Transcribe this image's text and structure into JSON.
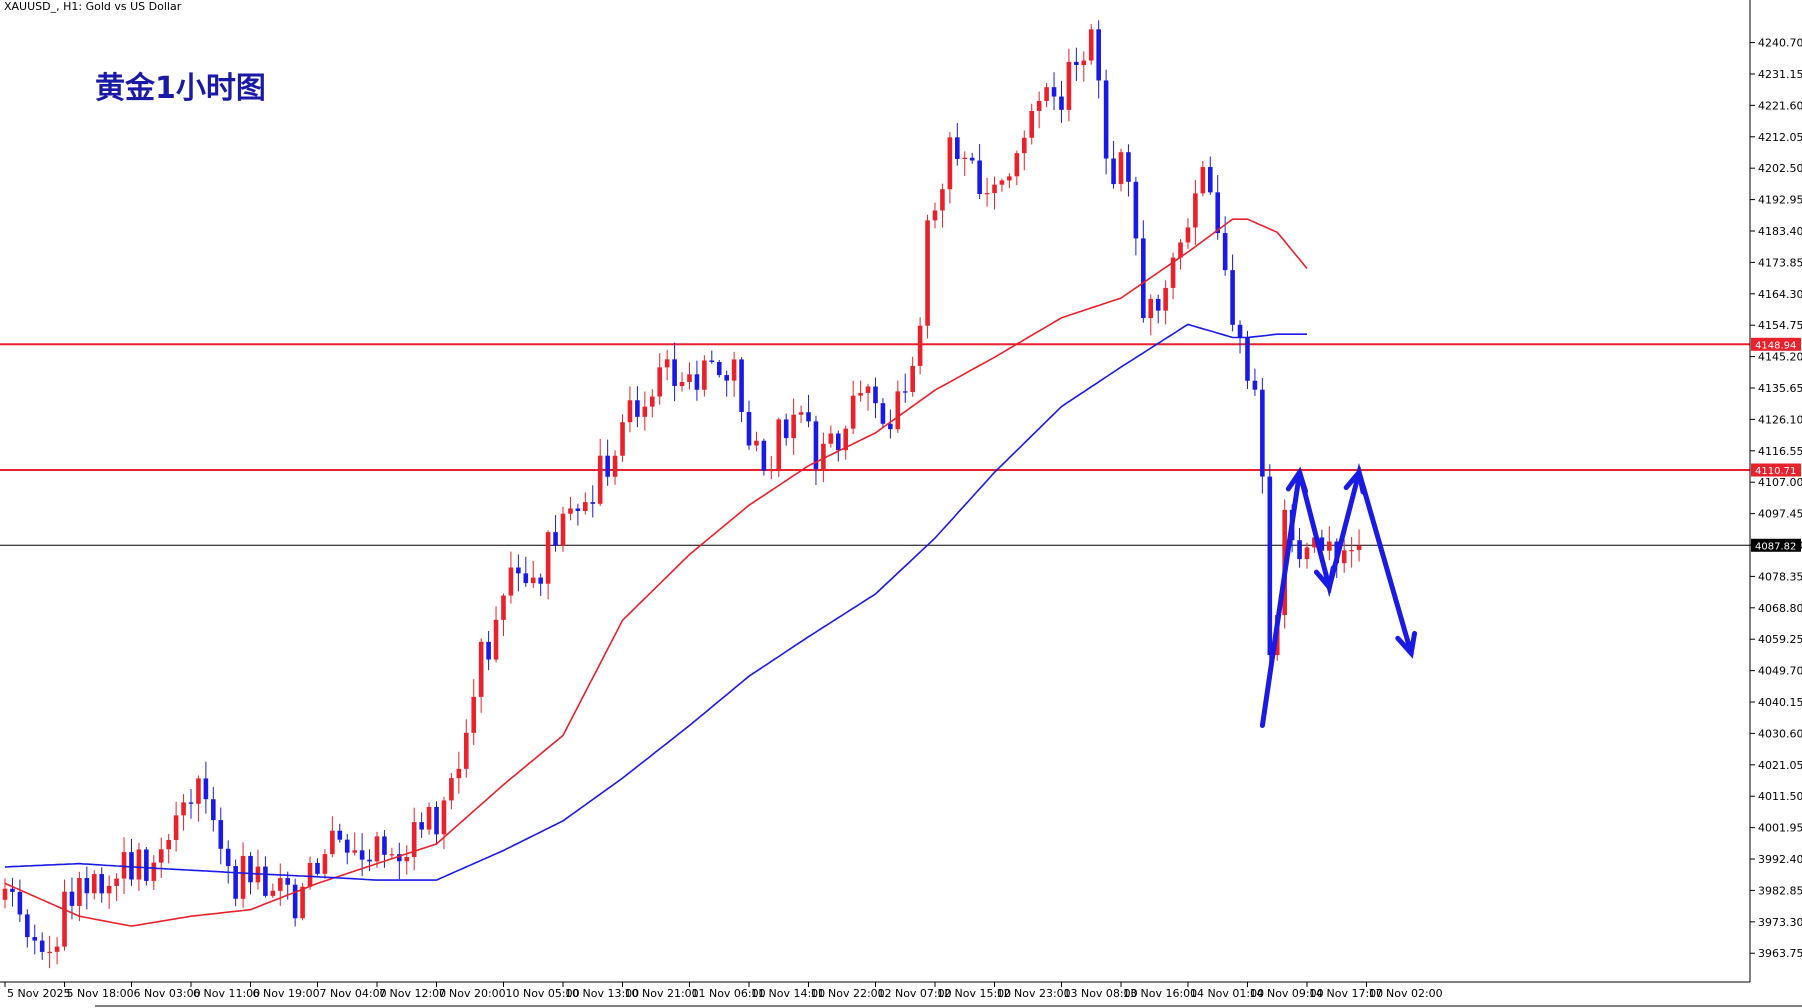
{
  "header": {
    "symbol_label": "XAUUSD_, H1:  Gold vs US Dollar"
  },
  "annotation": {
    "title": "黄金1小时图"
  },
  "colors": {
    "bull": "#e8212b",
    "bear": "#1a1ae6",
    "ma_fast": "#e8212b",
    "ma_slow": "#1a1ae6",
    "level_line": "#e8212b",
    "price_line": "#000000",
    "forecast_arrow": "#1a1ae6",
    "axis": "#000000"
  },
  "chart_data": {
    "type": "candlestick",
    "symbol": "XAUUSD_",
    "timeframe": "H1",
    "ylim": [
      3955,
      4250
    ],
    "y_ticks": [
      "4240.70",
      "4231.15",
      "4221.60",
      "4212.05",
      "4202.50",
      "4192.95",
      "4183.40",
      "4173.85",
      "4164.30",
      "4154.75",
      "4145.20",
      "4135.65",
      "4126.10",
      "4116.55",
      "4107.00",
      "4097.45",
      "4087.90",
      "4078.35",
      "4068.80",
      "4059.25",
      "4049.70",
      "4040.15",
      "4030.60",
      "4021.05",
      "4011.50",
      "4001.95",
      "3992.40",
      "3982.85",
      "3973.30",
      "3963.75"
    ],
    "x_ticks": [
      {
        "index": 0,
        "label": "5 Nov 2025"
      },
      {
        "index": 8,
        "label": "5 Nov 18:00"
      },
      {
        "index": 17,
        "label": "6 Nov 03:00"
      },
      {
        "index": 25,
        "label": "6 Nov 11:00"
      },
      {
        "index": 33,
        "label": "6 Nov 19:00"
      },
      {
        "index": 42,
        "label": "7 Nov 04:00"
      },
      {
        "index": 50,
        "label": "7 Nov 12:00"
      },
      {
        "index": 58,
        "label": "7 Nov 20:00"
      },
      {
        "index": 67,
        "label": "10 Nov 05:00"
      },
      {
        "index": 75,
        "label": "10 Nov 13:00"
      },
      {
        "index": 83,
        "label": "10 Nov 21:00"
      },
      {
        "index": 92,
        "label": "11 Nov 06:00"
      },
      {
        "index": 100,
        "label": "11 Nov 14:00"
      },
      {
        "index": 108,
        "label": "11 Nov 22:00"
      },
      {
        "index": 117,
        "label": "12 Nov 07:00"
      },
      {
        "index": 125,
        "label": "12 Nov 15:00"
      },
      {
        "index": 133,
        "label": "12 Nov 23:00"
      },
      {
        "index": 142,
        "label": "13 Nov 08:00"
      },
      {
        "index": 150,
        "label": "13 Nov 16:00"
      },
      {
        "index": 159,
        "label": "14 Nov 01:00"
      },
      {
        "index": 167,
        "label": "14 Nov 09:00"
      },
      {
        "index": 175,
        "label": "14 Nov 17:00"
      },
      {
        "index": 183,
        "label": "17 Nov 02:00"
      }
    ],
    "horizontal_levels": [
      {
        "value": 4148.94,
        "label": "4148.94"
      },
      {
        "value": 4110.71,
        "label": "4110.71"
      }
    ],
    "current_price": {
      "value": 4087.82,
      "label": "4087.82"
    },
    "anchors": [
      [
        0,
        3980
      ],
      [
        6,
        3968
      ],
      [
        10,
        3985
      ],
      [
        20,
        3990
      ],
      [
        24,
        4014
      ],
      [
        27,
        4012
      ],
      [
        31,
        3986
      ],
      [
        34,
        3990
      ],
      [
        38,
        3978
      ],
      [
        44,
        3995
      ],
      [
        50,
        3995
      ],
      [
        56,
        4000
      ],
      [
        60,
        4012
      ],
      [
        64,
        4055
      ],
      [
        68,
        4075
      ],
      [
        72,
        4082
      ],
      [
        78,
        4100
      ],
      [
        82,
        4118
      ],
      [
        88,
        4140
      ],
      [
        93,
        4138
      ],
      [
        98,
        4140
      ],
      [
        102,
        4108
      ],
      [
        106,
        4132
      ],
      [
        110,
        4112
      ],
      [
        114,
        4130
      ],
      [
        119,
        4130
      ],
      [
        122,
        4138
      ],
      [
        124,
        4180
      ],
      [
        127,
        4205
      ],
      [
        133,
        4198
      ],
      [
        138,
        4215
      ],
      [
        143,
        4230
      ],
      [
        146,
        4245
      ],
      [
        148,
        4205
      ],
      [
        151,
        4200
      ],
      [
        153,
        4150
      ],
      [
        157,
        4175
      ],
      [
        161,
        4205
      ],
      [
        164,
        4170
      ],
      [
        168,
        4130
      ],
      [
        169,
        4108
      ],
      [
        170,
        4050
      ],
      [
        172,
        4095
      ],
      [
        175,
        4088
      ],
      [
        177,
        4080
      ],
      [
        180,
        4092
      ],
      [
        182,
        4087.82
      ]
    ],
    "ma_fast_series": [
      [
        0,
        3985
      ],
      [
        10,
        3975
      ],
      [
        17,
        3972
      ],
      [
        25,
        3975
      ],
      [
        33,
        3977
      ],
      [
        42,
        3985
      ],
      [
        50,
        3991
      ],
      [
        58,
        3997
      ],
      [
        67,
        4015
      ],
      [
        75,
        4030
      ],
      [
        83,
        4065
      ],
      [
        92,
        4085
      ],
      [
        100,
        4100
      ],
      [
        108,
        4112
      ],
      [
        117,
        4122
      ],
      [
        125,
        4135
      ],
      [
        133,
        4145
      ],
      [
        142,
        4157
      ],
      [
        150,
        4163
      ],
      [
        159,
        4177
      ],
      [
        165,
        4187
      ],
      [
        167,
        4187
      ],
      [
        171,
        4183
      ],
      [
        175,
        4172
      ]
    ],
    "ma_slow_series": [
      [
        0,
        3990
      ],
      [
        10,
        3991
      ],
      [
        17,
        3990
      ],
      [
        25,
        3989
      ],
      [
        33,
        3988
      ],
      [
        42,
        3987
      ],
      [
        50,
        3986
      ],
      [
        58,
        3986
      ],
      [
        67,
        3995
      ],
      [
        75,
        4004
      ],
      [
        83,
        4017
      ],
      [
        92,
        4033
      ],
      [
        100,
        4048
      ],
      [
        108,
        4060
      ],
      [
        117,
        4073
      ],
      [
        125,
        4090
      ],
      [
        133,
        4110
      ],
      [
        142,
        4130
      ],
      [
        150,
        4142
      ],
      [
        159,
        4155
      ],
      [
        165,
        4151
      ],
      [
        167,
        4151
      ],
      [
        171,
        4152
      ],
      [
        175,
        4152
      ]
    ],
    "forecast_path": [
      [
        169,
        4033
      ],
      [
        174,
        4110
      ],
      [
        178,
        4075
      ],
      [
        182,
        4110
      ],
      [
        189,
        4055
      ]
    ]
  }
}
